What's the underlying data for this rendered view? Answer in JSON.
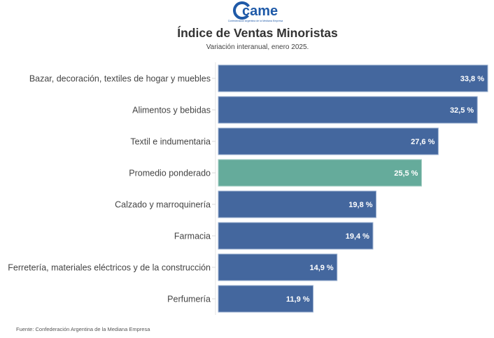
{
  "header": {
    "logo_text": "came",
    "logo_subtitle": "Confederación Argentina de la Mediana Empresa",
    "title": "Índice de Ventas Minoristas",
    "subtitle": "Variación interanual, enero 2025."
  },
  "footer": {
    "source": "Fuente: Confederación Argentina de la Mediana Empresa"
  },
  "colors": {
    "bar": "#44679e",
    "highlight": "#65ab9b",
    "brand": "#1f5aa8"
  },
  "chart_data": {
    "type": "bar",
    "orientation": "horizontal",
    "title": "Índice de Ventas Minoristas",
    "subtitle": "Variación interanual, enero 2025.",
    "xlabel": "",
    "ylabel": "",
    "unit": "%",
    "grid": false,
    "legend": "none",
    "xlim": [
      0,
      35
    ],
    "categories": [
      "Bazar, decoración, textiles de hogar y muebles",
      "Alimentos y bebidas",
      "Textil e indumentaria",
      "Promedio ponderado",
      "Calzado y marroquinería",
      "Farmacia",
      "Ferretería, materiales eléctricos y de la construcción",
      "Perfumería"
    ],
    "values": [
      33.8,
      32.5,
      27.6,
      25.5,
      19.8,
      19.4,
      14.9,
      11.9
    ],
    "value_labels": [
      "33,8 %",
      "32,5 %",
      "27,6 %",
      "25,5 %",
      "19,8 %",
      "19,4 %",
      "14,9 %",
      "11,9 %"
    ],
    "highlight_category": "Promedio ponderado"
  }
}
